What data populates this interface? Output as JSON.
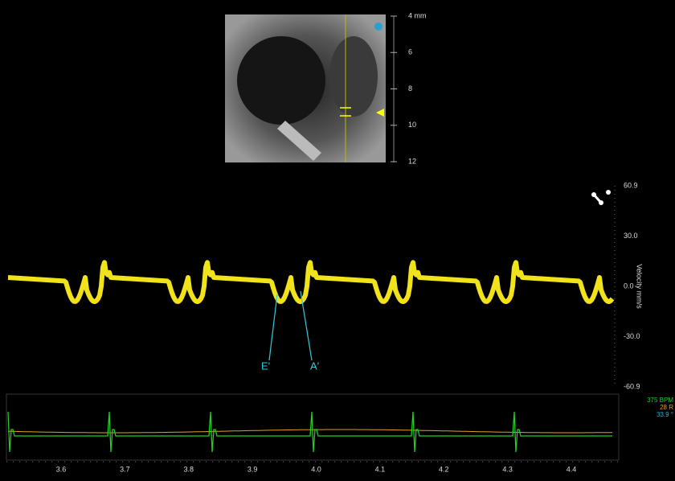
{
  "depth_scale": {
    "ticks": [
      "4 mm",
      "6",
      "8",
      "10",
      "12"
    ]
  },
  "velocity_axis": {
    "label": "Velocity mm/s",
    "ticks": [
      "60.9",
      "30.0",
      "0.0",
      "-30.0",
      "-60.9"
    ]
  },
  "annotations": [
    "E'",
    "A'"
  ],
  "vitals": [
    "375 BPM",
    "28 R",
    "33.9 °"
  ],
  "time_axis": {
    "ticks": [
      "3.6",
      "3.7",
      "3.8",
      "3.9",
      "4.0",
      "4.1",
      "4.2",
      "4.3",
      "4.4"
    ]
  }
}
